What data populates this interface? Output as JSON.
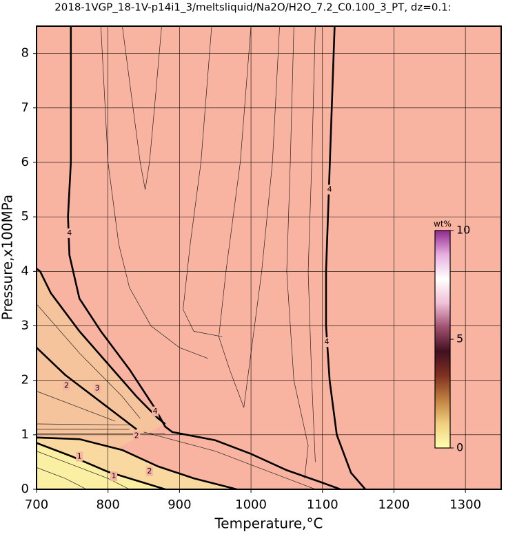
{
  "chart_data": {
    "type": "contour",
    "title": "2018-1VGP_18-1V-p14i1_3/meltsliquid/Na2O/H2O_7.2_C0.100_3_PT, dz=0.1:",
    "x_label": "Temperature,°C",
    "y_label": "Pressure,x100MPa",
    "xlim": [
      700,
      1350
    ],
    "ylim": [
      0,
      8.5
    ],
    "xticks": [
      700,
      800,
      900,
      1000,
      1100,
      1200,
      1300
    ],
    "yticks": [
      0,
      1,
      2,
      3,
      4,
      5,
      6,
      7,
      8
    ],
    "grid": true,
    "plot_background": "#f8b4a0",
    "contours": [
      {
        "level": 4,
        "x": [
          748,
          748,
          744,
          746,
          760,
          790,
          830,
          865,
          880,
          890,
          950,
          1000,
          1050,
          1100,
          1125
        ],
        "y": [
          8.5,
          6,
          5,
          4.3,
          3.5,
          2.9,
          2.2,
          1.5,
          1.15,
          1.05,
          0.9,
          0.65,
          0.35,
          0.12,
          0
        ],
        "label_at": [
          [
            746,
            4.7
          ],
          [
            866,
            1.43
          ]
        ]
      },
      {
        "level": 4,
        "x": [
          1117,
          1113,
          1109,
          1105,
          1105,
          1110,
          1120,
          1140,
          1160
        ],
        "y": [
          8.5,
          7,
          5.5,
          4,
          3,
          2,
          1,
          0.3,
          0
        ],
        "label_at": [
          [
            1110,
            5.5
          ],
          [
            1106,
            2.7
          ]
        ]
      },
      {
        "level": 3,
        "x": [
          700,
          705,
          720,
          760,
          800,
          840,
          870,
          880
        ],
        "y": [
          4.05,
          4.0,
          3.6,
          2.9,
          2.3,
          1.7,
          1.3,
          1.2
        ],
        "fill": "#f6c49c",
        "label_at": [
          [
            785,
            1.85
          ]
        ]
      },
      {
        "level": 2,
        "x": [
          700,
          740,
          790,
          830,
          840
        ],
        "y": [
          2.6,
          2.1,
          1.6,
          1.2,
          1.1
        ],
        "label_at": [
          [
            742,
            1.9
          ]
        ]
      },
      {
        "level": 2,
        "x": [
          700,
          760,
          820,
          870,
          920,
          980
        ],
        "y": [
          0.95,
          0.92,
          0.72,
          0.42,
          0.2,
          0
        ],
        "fill": "#f9d9a0",
        "label_at": [
          [
            840,
            0.98
          ],
          [
            858,
            0.33
          ]
        ]
      },
      {
        "level": 1,
        "x": [
          700,
          750,
          800,
          850,
          880
        ],
        "y": [
          0.85,
          0.6,
          0.32,
          0.12,
          0
        ],
        "fill": "#fbefa4",
        "label_at": [
          [
            760,
            0.6
          ],
          [
            808,
            0.24
          ]
        ]
      }
    ],
    "thin_contours": [
      {
        "x": [
          820,
          835,
          845,
          852,
          858,
          865,
          875
        ],
        "y": [
          8.5,
          7,
          6,
          5.5,
          6,
          7,
          8.5
        ]
      },
      {
        "x": [
          790,
          800,
          815,
          830,
          860,
          900,
          940
        ],
        "y": [
          8.5,
          6,
          4.5,
          3.7,
          3.0,
          2.6,
          2.4
        ]
      },
      {
        "x": [
          945,
          930,
          915,
          905,
          920,
          960
        ],
        "y": [
          8.5,
          6,
          4.5,
          3.3,
          2.9,
          2.8
        ]
      },
      {
        "x": [
          1000,
          985,
          965,
          955,
          970,
          990,
          1000,
          1015,
          1030,
          1040
        ],
        "y": [
          8.5,
          6,
          4,
          2.8,
          2.2,
          1.5,
          2.5,
          4,
          6,
          8.5
        ]
      },
      {
        "x": [
          1060,
          1055,
          1050,
          1060,
          1080,
          1075
        ],
        "y": [
          8.5,
          6,
          4,
          2,
          0.8,
          0.2
        ]
      },
      {
        "x": [
          1090,
          1085,
          1080,
          1085,
          1090
        ],
        "y": [
          8.5,
          6,
          4,
          2,
          0.5
        ]
      },
      {
        "x": [
          700,
          760,
          820,
          845
        ],
        "y": [
          3.4,
          2.5,
          1.7,
          1.3
        ]
      },
      {
        "x": [
          700,
          760,
          810
        ],
        "y": [
          1.8,
          1.5,
          1.25
        ]
      },
      {
        "x": [
          700,
          830
        ],
        "y": [
          1.2,
          1.18
        ]
      },
      {
        "x": [
          700,
          830
        ],
        "y": [
          1.1,
          1.1
        ]
      },
      {
        "x": [
          700,
          880
        ],
        "y": [
          1.03,
          1.03
        ]
      },
      {
        "x": [
          700,
          760,
          800,
          830
        ],
        "y": [
          0.7,
          0.4,
          0.2,
          0
        ]
      },
      {
        "x": [
          700,
          740,
          770
        ],
        "y": [
          0.4,
          0.2,
          0
        ]
      },
      {
        "x": [
          850,
          950,
          1020,
          1070,
          1090
        ],
        "y": [
          1.05,
          0.7,
          0.35,
          0.1,
          0
        ]
      }
    ],
    "colorbar": {
      "label": "wt%",
      "lim": [
        0,
        10
      ],
      "ticks": [
        0,
        5,
        10
      ],
      "colormap": [
        "#ffffb0",
        "#f0d080",
        "#c08040",
        "#803020",
        "#401020",
        "#a05070",
        "#f0c0d8",
        "#ffffff",
        "#e8b0e0",
        "#902890"
      ]
    }
  }
}
